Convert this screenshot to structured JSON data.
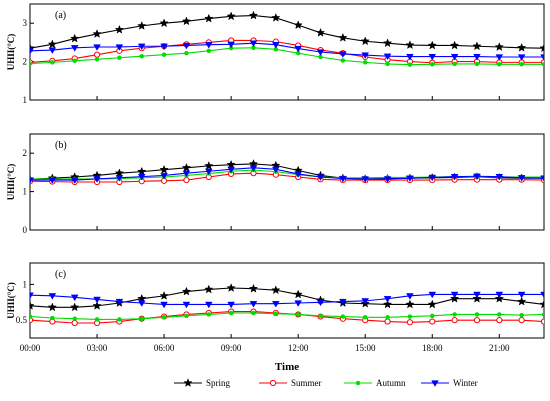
{
  "chart_data": {
    "type": "line",
    "xlabel": "Time",
    "x_tick_labels": [
      "00:00",
      "03:00",
      "06:00",
      "09:00",
      "12:00",
      "15:00",
      "18:00",
      "21:00"
    ],
    "x_tick_hours": [
      0,
      3,
      6,
      9,
      12,
      15,
      18,
      21
    ],
    "xlim": [
      0,
      23
    ],
    "x_hours": [
      0,
      1,
      2,
      3,
      4,
      5,
      6,
      7,
      8,
      9,
      10,
      11,
      12,
      13,
      14,
      15,
      16,
      17,
      18,
      19,
      20,
      21,
      22,
      23
    ],
    "legend_position": "bottom-center",
    "series_styles": [
      {
        "name": "Spring",
        "color": "#000000",
        "marker": "star"
      },
      {
        "name": "Summer",
        "color": "#ff0000",
        "marker": "circle"
      },
      {
        "name": "Autumn",
        "color": "#00dd00",
        "marker": "dot"
      },
      {
        "name": "Winter",
        "color": "#0000ff",
        "marker": "triangle-down"
      }
    ],
    "panels": [
      {
        "label": "(a)",
        "ylabel": "UHII(°C)",
        "ylim": [
          1,
          3.5
        ],
        "yticks": [
          1,
          2,
          3
        ],
        "series": [
          {
            "name": "Spring",
            "values": [
              2.35,
              2.45,
              2.6,
              2.72,
              2.83,
              2.93,
              3.0,
              3.05,
              3.12,
              3.18,
              3.2,
              3.14,
              2.95,
              2.75,
              2.62,
              2.53,
              2.48,
              2.43,
              2.42,
              2.42,
              2.4,
              2.38,
              2.36,
              2.35
            ]
          },
          {
            "name": "Summer",
            "values": [
              1.98,
              2.02,
              2.08,
              2.18,
              2.28,
              2.35,
              2.4,
              2.45,
              2.5,
              2.55,
              2.55,
              2.52,
              2.42,
              2.3,
              2.22,
              2.12,
              2.05,
              2.0,
              1.97,
              2.0,
              2.0,
              1.98,
              1.98,
              1.98
            ]
          },
          {
            "name": "Autumn",
            "values": [
              1.95,
              1.98,
              2.02,
              2.06,
              2.1,
              2.14,
              2.18,
              2.22,
              2.28,
              2.35,
              2.36,
              2.32,
              2.22,
              2.12,
              2.03,
              1.98,
              1.94,
              1.92,
              1.93,
              1.94,
              1.94,
              1.93,
              1.93,
              1.93
            ]
          },
          {
            "name": "Winter",
            "values": [
              2.28,
              2.3,
              2.36,
              2.38,
              2.38,
              2.4,
              2.4,
              2.42,
              2.44,
              2.45,
              2.48,
              2.44,
              2.34,
              2.25,
              2.2,
              2.17,
              2.14,
              2.13,
              2.13,
              2.13,
              2.13,
              2.12,
              2.12,
              2.12
            ]
          }
        ]
      },
      {
        "label": "(b)",
        "ylabel": "UHII(°C)",
        "ylim": [
          0,
          2.5
        ],
        "yticks": [
          0,
          1,
          2
        ],
        "series": [
          {
            "name": "Spring",
            "values": [
              1.32,
              1.35,
              1.38,
              1.42,
              1.48,
              1.52,
              1.57,
              1.62,
              1.67,
              1.7,
              1.72,
              1.68,
              1.55,
              1.42,
              1.35,
              1.33,
              1.34,
              1.35,
              1.36,
              1.37,
              1.38,
              1.36,
              1.35,
              1.35
            ]
          },
          {
            "name": "Summer",
            "values": [
              1.27,
              1.26,
              1.25,
              1.25,
              1.25,
              1.27,
              1.28,
              1.3,
              1.38,
              1.46,
              1.48,
              1.44,
              1.38,
              1.32,
              1.3,
              1.3,
              1.3,
              1.3,
              1.3,
              1.31,
              1.31,
              1.31,
              1.31,
              1.3
            ]
          },
          {
            "name": "Autumn",
            "values": [
              1.33,
              1.33,
              1.33,
              1.33,
              1.34,
              1.36,
              1.38,
              1.42,
              1.47,
              1.53,
              1.56,
              1.52,
              1.44,
              1.38,
              1.36,
              1.36,
              1.37,
              1.37,
              1.38,
              1.39,
              1.38,
              1.38,
              1.38,
              1.38
            ]
          },
          {
            "name": "Winter",
            "values": [
              1.3,
              1.3,
              1.3,
              1.33,
              1.36,
              1.39,
              1.42,
              1.48,
              1.53,
              1.58,
              1.62,
              1.58,
              1.46,
              1.38,
              1.34,
              1.33,
              1.33,
              1.35,
              1.37,
              1.39,
              1.4,
              1.39,
              1.36,
              1.35
            ]
          }
        ]
      },
      {
        "label": "(c)",
        "ylabel": "UHII(°C)",
        "ylim": [
          0.25,
          1.3
        ],
        "yticks": [
          0.5,
          1
        ],
        "series": [
          {
            "name": "Spring",
            "values": [
              0.7,
              0.68,
              0.68,
              0.7,
              0.74,
              0.8,
              0.84,
              0.9,
              0.93,
              0.95,
              0.94,
              0.92,
              0.86,
              0.78,
              0.74,
              0.73,
              0.72,
              0.72,
              0.72,
              0.8,
              0.8,
              0.8,
              0.76,
              0.72
            ]
          },
          {
            "name": "Summer",
            "values": [
              0.5,
              0.48,
              0.46,
              0.46,
              0.48,
              0.52,
              0.55,
              0.58,
              0.6,
              0.62,
              0.62,
              0.6,
              0.58,
              0.55,
              0.52,
              0.5,
              0.48,
              0.47,
              0.48,
              0.5,
              0.5,
              0.5,
              0.5,
              0.48
            ]
          },
          {
            "name": "Autumn",
            "values": [
              0.55,
              0.53,
              0.52,
              0.51,
              0.51,
              0.52,
              0.54,
              0.56,
              0.58,
              0.6,
              0.6,
              0.59,
              0.58,
              0.56,
              0.55,
              0.54,
              0.54,
              0.55,
              0.56,
              0.58,
              0.58,
              0.58,
              0.57,
              0.58
            ]
          },
          {
            "name": "Winter",
            "values": [
              0.85,
              0.84,
              0.82,
              0.79,
              0.76,
              0.74,
              0.72,
              0.72,
              0.72,
              0.72,
              0.73,
              0.73,
              0.74,
              0.75,
              0.76,
              0.77,
              0.8,
              0.84,
              0.86,
              0.86,
              0.86,
              0.86,
              0.86,
              0.86
            ]
          }
        ]
      }
    ]
  }
}
